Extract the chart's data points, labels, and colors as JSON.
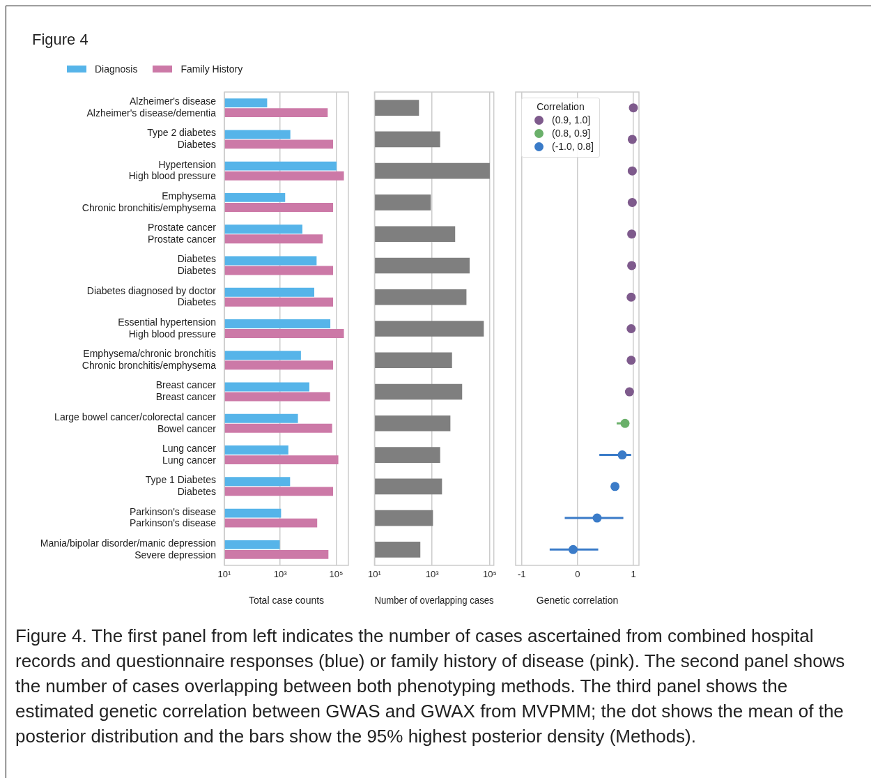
{
  "chart_data": [
    {
      "type": "bar",
      "orientation": "horizontal",
      "title": "Figure 4",
      "log": "x",
      "grid": "x",
      "legend": "top left",
      "xlabel": "Total case counts",
      "categories": [
        "Alzheimer's disease\nAlzheimer's disease/dementia",
        "Type 2 diabetes\nDiabetes",
        "Hypertension\nHigh blood pressure",
        "Emphysema\nChronic bronchitis/emphysema",
        "Prostate cancer\nProstate cancer",
        "Diabetes\nDiabetes",
        "Diabetes diagnosed by doctor\nDiabetes",
        "Essential hypertension\nHigh blood pressure",
        "Emphysema/chronic bronchitis\nChronic bronchitis/emphysema",
        "Breast cancer\nBreast cancer",
        "Large bowel cancer/colorectal cancer\nBowel cancer",
        "Lung cancer\nLung cancer",
        "Type 1 Diabetes\nDiabetes",
        "Parkinson's disease\nParkinson's disease",
        "Mania/bipolar disorder/manic depression\nSevere depression"
      ],
      "series": [
        {
          "name": "Diagnosis",
          "color": "#56b4e9",
          "values": [
            340,
            2300,
            104000,
            1500,
            6200,
            20000,
            16500,
            62000,
            5500,
            11000,
            4300,
            1950,
            2250,
            1070,
            960
          ]
        },
        {
          "name": "Family History",
          "color": "#cc79a7",
          "values": [
            50000,
            78000,
            190000,
            78000,
            33000,
            78000,
            78000,
            190000,
            78000,
            61000,
            72000,
            120000,
            78000,
            21000,
            53000
          ]
        }
      ],
      "xlim": [
        10,
        275000
      ],
      "xticks": [
        {
          "value": 10,
          "label": "10¹"
        },
        {
          "value": 1000,
          "label": "10³"
        },
        {
          "value": 100000,
          "label": "10⁵"
        }
      ],
      "annotations": [
        "Figure 4. The first panel from left indicates the number of cases ascertained from combined hospital records and questionnaire responses (blue) or family history of disease (pink). The second panel shows the number of cases overlapping between both phenotyping methods. The third panel shows the estimated genetic correlation between GWAS and GWAX from MVPMM; the dot shows the mean of the posterior distribution and the bars show the 95% highest posterior density (Methods)."
      ]
    },
    {
      "type": "bar",
      "orientation": "horizontal",
      "log": "x",
      "grid": "x",
      "tick_labels": "x",
      "xlabel": "Number of overlapping cases",
      "categories": [
        null,
        null,
        null,
        null,
        null,
        null,
        null,
        null,
        null,
        null,
        null,
        null,
        null,
        null,
        null
      ],
      "color": "#7f7f7f",
      "values": [
        350,
        1900,
        100000,
        900,
        6300,
        20000,
        15500,
        62000,
        4900,
        11000,
        4300,
        1900,
        2200,
        1070,
        390
      ],
      "xlim": [
        10,
        138000
      ],
      "xticks": [
        {
          "value": 10,
          "label": "10¹"
        },
        {
          "value": 1000,
          "label": "10³"
        },
        {
          "value": 100000,
          "label": "10⁵"
        }
      ]
    },
    {
      "type": "scatter",
      "orientation": "horizontal",
      "grid": "x",
      "tick_labels": "x",
      "legend": "top left",
      "legend_title": "Correlation",
      "marker": "circle",
      "xlabel": "Genetic correlation",
      "categories": [
        null,
        null,
        null,
        null,
        null,
        null,
        null,
        null,
        null,
        null,
        null,
        null,
        null,
        null,
        null
      ],
      "series": [
        {
          "name": "(0.9, 1.0]",
          "color": "#7e5a8c",
          "values": [
            1.0,
            0.98,
            0.98,
            0.98,
            0.97,
            0.97,
            0.96,
            0.96,
            0.96,
            0.93,
            null,
            null,
            null,
            null,
            null
          ]
        },
        {
          "name": "(0.8, 0.9]",
          "color": "#6ab06a",
          "values": [
            null,
            null,
            null,
            null,
            null,
            null,
            null,
            null,
            null,
            null,
            0.85,
            null,
            null,
            null,
            null
          ],
          "errors": [
            null,
            null,
            null,
            null,
            null,
            null,
            null,
            null,
            null,
            null,
            [
              0.7,
              0.91
            ],
            null,
            null,
            null,
            null
          ]
        },
        {
          "name": "(-1.0, 0.8]",
          "color": "#3a7bc8",
          "values": [
            null,
            null,
            null,
            null,
            null,
            null,
            null,
            null,
            null,
            null,
            null,
            0.8,
            0.67,
            0.35,
            -0.08
          ],
          "errors": [
            null,
            null,
            null,
            null,
            null,
            null,
            null,
            null,
            null,
            null,
            null,
            [
              0.39,
              0.96
            ],
            null,
            [
              -0.23,
              0.82
            ],
            [
              -0.5,
              0.37
            ]
          ]
        }
      ],
      "xlim": [
        -1.11,
        1.1
      ],
      "xticks": [
        -1,
        0,
        1
      ]
    }
  ]
}
